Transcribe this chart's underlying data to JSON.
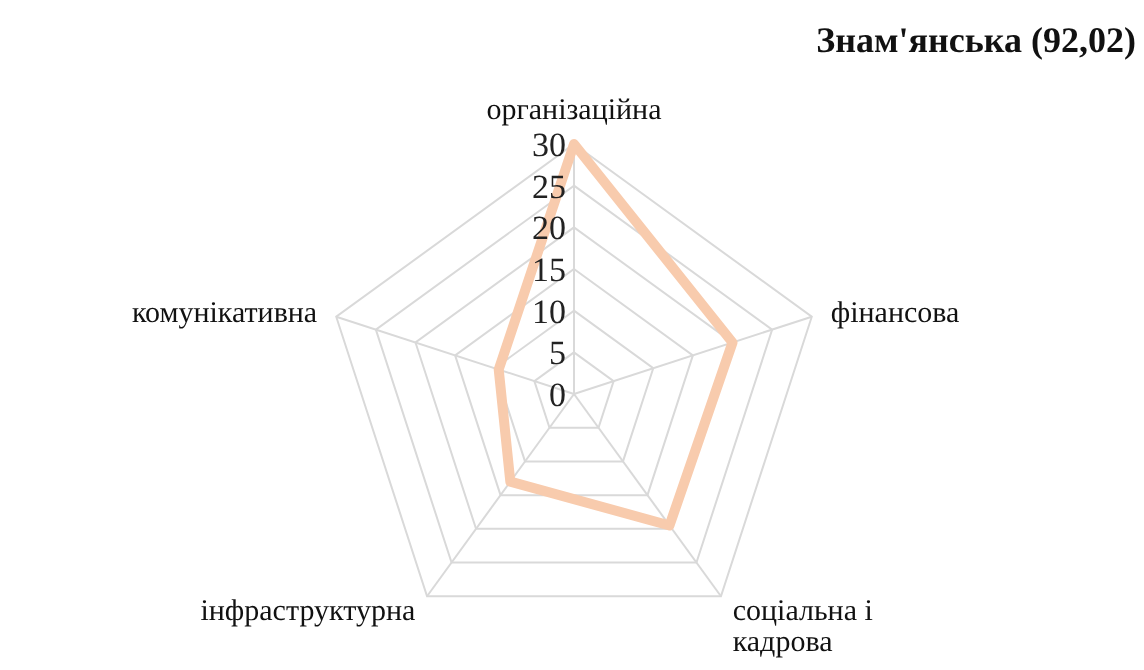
{
  "chart_data": {
    "type": "radar",
    "title": "Знам'янська (92,02)",
    "categories": [
      "організаційна",
      "фінансова",
      "соціальна і кадрова",
      "інфраструктурна",
      "комунікативна"
    ],
    "series": [
      {
        "color": "#f8cbad",
        "values": [
          30,
          20,
          19.5,
          13,
          9.5
        ]
      }
    ],
    "ylim": [
      0,
      30
    ],
    "yticks": [
      0,
      5,
      10,
      15,
      20,
      25,
      30
    ],
    "grid": true,
    "marker": "none"
  }
}
